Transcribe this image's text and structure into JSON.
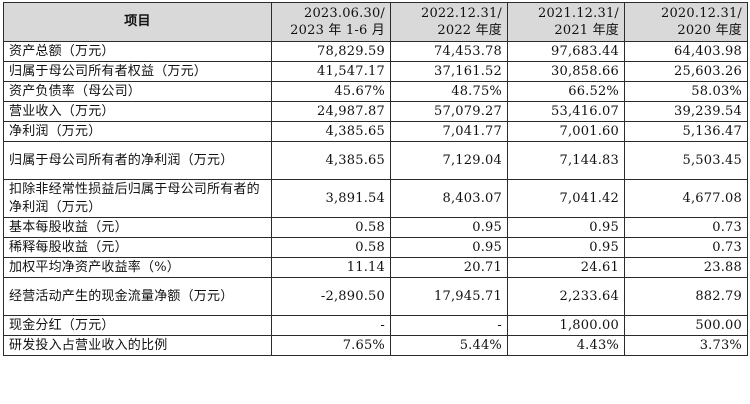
{
  "table": {
    "header": {
      "item": "项目",
      "columns": [
        {
          "line1": "2023.06.30/",
          "line2": "2023 年 1-6 月"
        },
        {
          "line1": "2022.12.31/",
          "line2": "2022 年度"
        },
        {
          "line1": "2021.12.31/",
          "line2": "2021 年度"
        },
        {
          "line1": "2020.12.31/",
          "line2": "2020 年度"
        }
      ]
    },
    "rows": [
      {
        "label": "资产总额（万元）",
        "values": [
          "78,829.59",
          "74,453.78",
          "97,683.44",
          "64,403.98"
        ]
      },
      {
        "label": "归属于母公司所有者权益（万元）",
        "values": [
          "41,547.17",
          "37,161.52",
          "30,858.66",
          "25,603.26"
        ]
      },
      {
        "label": "资产负债率（母公司）",
        "values": [
          "45.67%",
          "48.75%",
          "66.52%",
          "58.03%"
        ]
      },
      {
        "label": "营业收入（万元）",
        "values": [
          "24,987.87",
          "57,079.27",
          "53,416.07",
          "39,239.54"
        ]
      },
      {
        "label": "净利润（万元）",
        "values": [
          "4,385.65",
          "7,041.77",
          "7,001.60",
          "5,136.47"
        ]
      },
      {
        "label": "归属于母公司所有者的净利润（万元）",
        "values": [
          "4,385.65",
          "7,129.04",
          "7,144.83",
          "5,503.45"
        ]
      },
      {
        "label": "扣除非经常性损益后归属于母公司所有者的净利润（万元）",
        "values": [
          "3,891.54",
          "8,403.07",
          "7,041.42",
          "4,677.08"
        ]
      },
      {
        "label": "基本每股收益（元）",
        "values": [
          "0.58",
          "0.95",
          "0.95",
          "0.73"
        ]
      },
      {
        "label": "稀释每股收益（元）",
        "values": [
          "0.58",
          "0.95",
          "0.95",
          "0.73"
        ]
      },
      {
        "label": "加权平均净资产收益率（%）",
        "values": [
          "11.14",
          "20.71",
          "24.61",
          "23.88"
        ]
      },
      {
        "label": "经营活动产生的现金流量净额（万元）",
        "values": [
          "-2,890.50",
          "17,945.71",
          "2,233.64",
          "882.79"
        ]
      },
      {
        "label": "现金分红（万元）",
        "values": [
          "-",
          "-",
          "1,800.00",
          "500.00"
        ]
      },
      {
        "label": "研发投入占营业收入的比例",
        "values": [
          "7.65%",
          "5.44%",
          "4.43%",
          "3.73%"
        ]
      }
    ]
  }
}
